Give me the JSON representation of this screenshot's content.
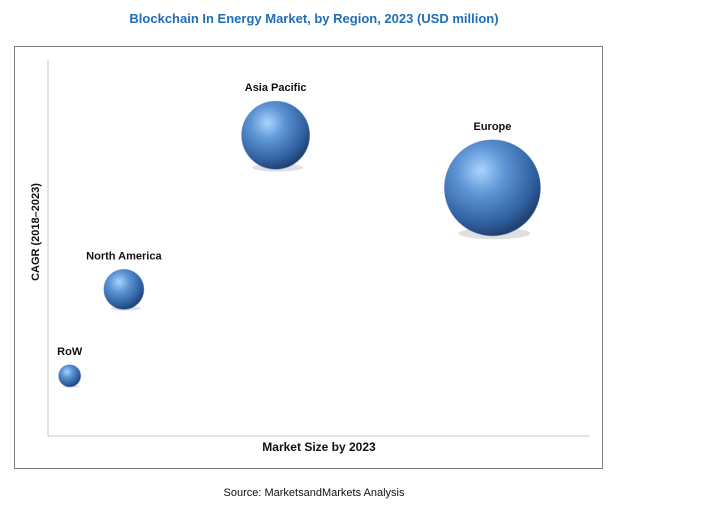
{
  "chart_data": {
    "type": "scatter",
    "title": "Blockchain In Energy Market, by Region, 2023 (USD million)",
    "xlabel": "Market Size by 2023",
    "ylabel": "CAGR (2018–2023)",
    "xlim": [
      0,
      100
    ],
    "ylim": [
      0,
      100
    ],
    "grid": false,
    "legend": "none",
    "bubble_color": "#3d6fb8",
    "points": [
      {
        "label": "Asia Pacific",
        "x": 42,
        "y": 80,
        "size": 34
      },
      {
        "label": "Europe",
        "x": 82,
        "y": 66,
        "size": 48
      },
      {
        "label": "North America",
        "x": 14,
        "y": 39,
        "size": 20
      },
      {
        "label": "RoW",
        "x": 4,
        "y": 16,
        "size": 11
      }
    ]
  },
  "source": "Source: MarketsandMarkets Analysis"
}
